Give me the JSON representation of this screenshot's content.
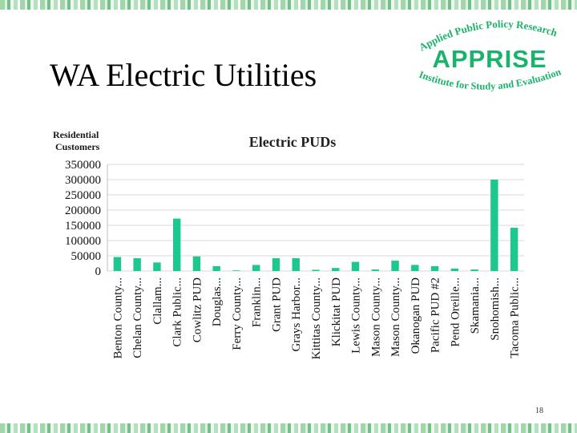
{
  "slide": {
    "title": "WA Electric Utilities",
    "page_number": "18"
  },
  "logo": {
    "top_text": "Applied Public Policy Research",
    "main_text": "APPRISE",
    "bottom_text": "Institute for Study and Evaluation",
    "color": "#1bb36b"
  },
  "chart_data": {
    "type": "bar",
    "title": "Electric PUDs",
    "ylabel": "Residential Customers",
    "ylabel_lines": [
      "Residential",
      "Customers"
    ],
    "xlabel": "",
    "ylim": [
      0,
      350000
    ],
    "yticks": [
      0,
      50000,
      100000,
      150000,
      200000,
      250000,
      300000,
      350000
    ],
    "grid": true,
    "bar_color": "#1cc88e",
    "categories": [
      "Benton County...",
      "Chelan County...",
      "Clallam...",
      "Clark Public...",
      "Cowlitz PUD",
      "Douglas...",
      "Ferry County...",
      "Franklin...",
      "Grant PUD",
      "Grays Harbor...",
      "Kittitas County...",
      "Klickitat PUD",
      "Lewis County...",
      "Mason County...",
      "Mason County...",
      "Okanogan PUD",
      "Pacific PUD #2",
      "Pend Oreille...",
      "Skamania...",
      "Snohomish...",
      "Tacoma Public..."
    ],
    "values": [
      46000,
      42000,
      28000,
      172000,
      48000,
      16000,
      2000,
      20000,
      42000,
      42000,
      4000,
      10000,
      30000,
      5000,
      34000,
      20000,
      16000,
      8000,
      5000,
      300000,
      142000
    ]
  }
}
